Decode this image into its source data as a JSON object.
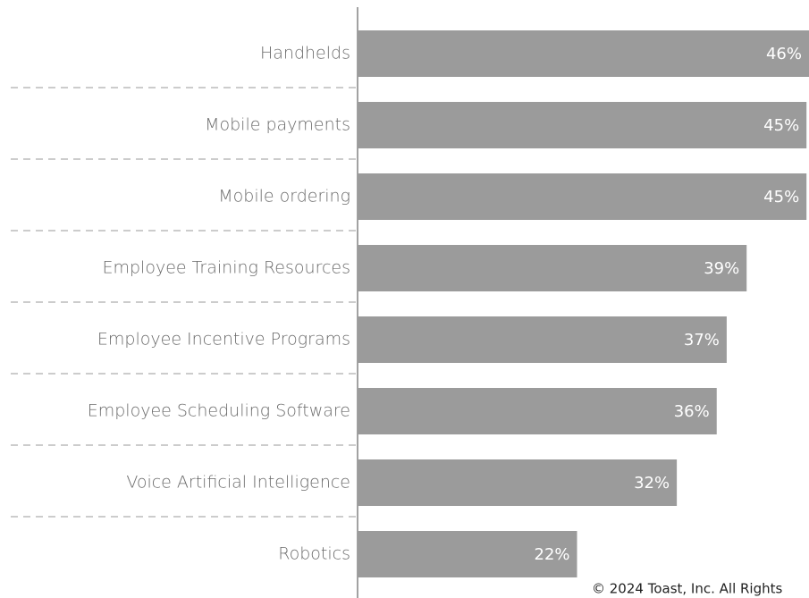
{
  "chart_data": {
    "type": "barh",
    "categories": [
      "Handhelds",
      "Mobile payments",
      "Mobile ordering",
      "Employee Training Resources",
      "Employee Incentive Programs",
      "Employee Scheduling Software",
      "Voice Artificial Intelligence",
      "Robotics"
    ],
    "values": [
      46,
      45,
      45,
      39,
      37,
      36,
      32,
      22
    ],
    "value_labels": [
      "46%",
      "45%",
      "45%",
      "39%",
      "37%",
      "36%",
      "32%",
      "22%"
    ],
    "color": "#9b9b9b",
    "footer": "© 2024 Toast, Inc. All Rights"
  }
}
